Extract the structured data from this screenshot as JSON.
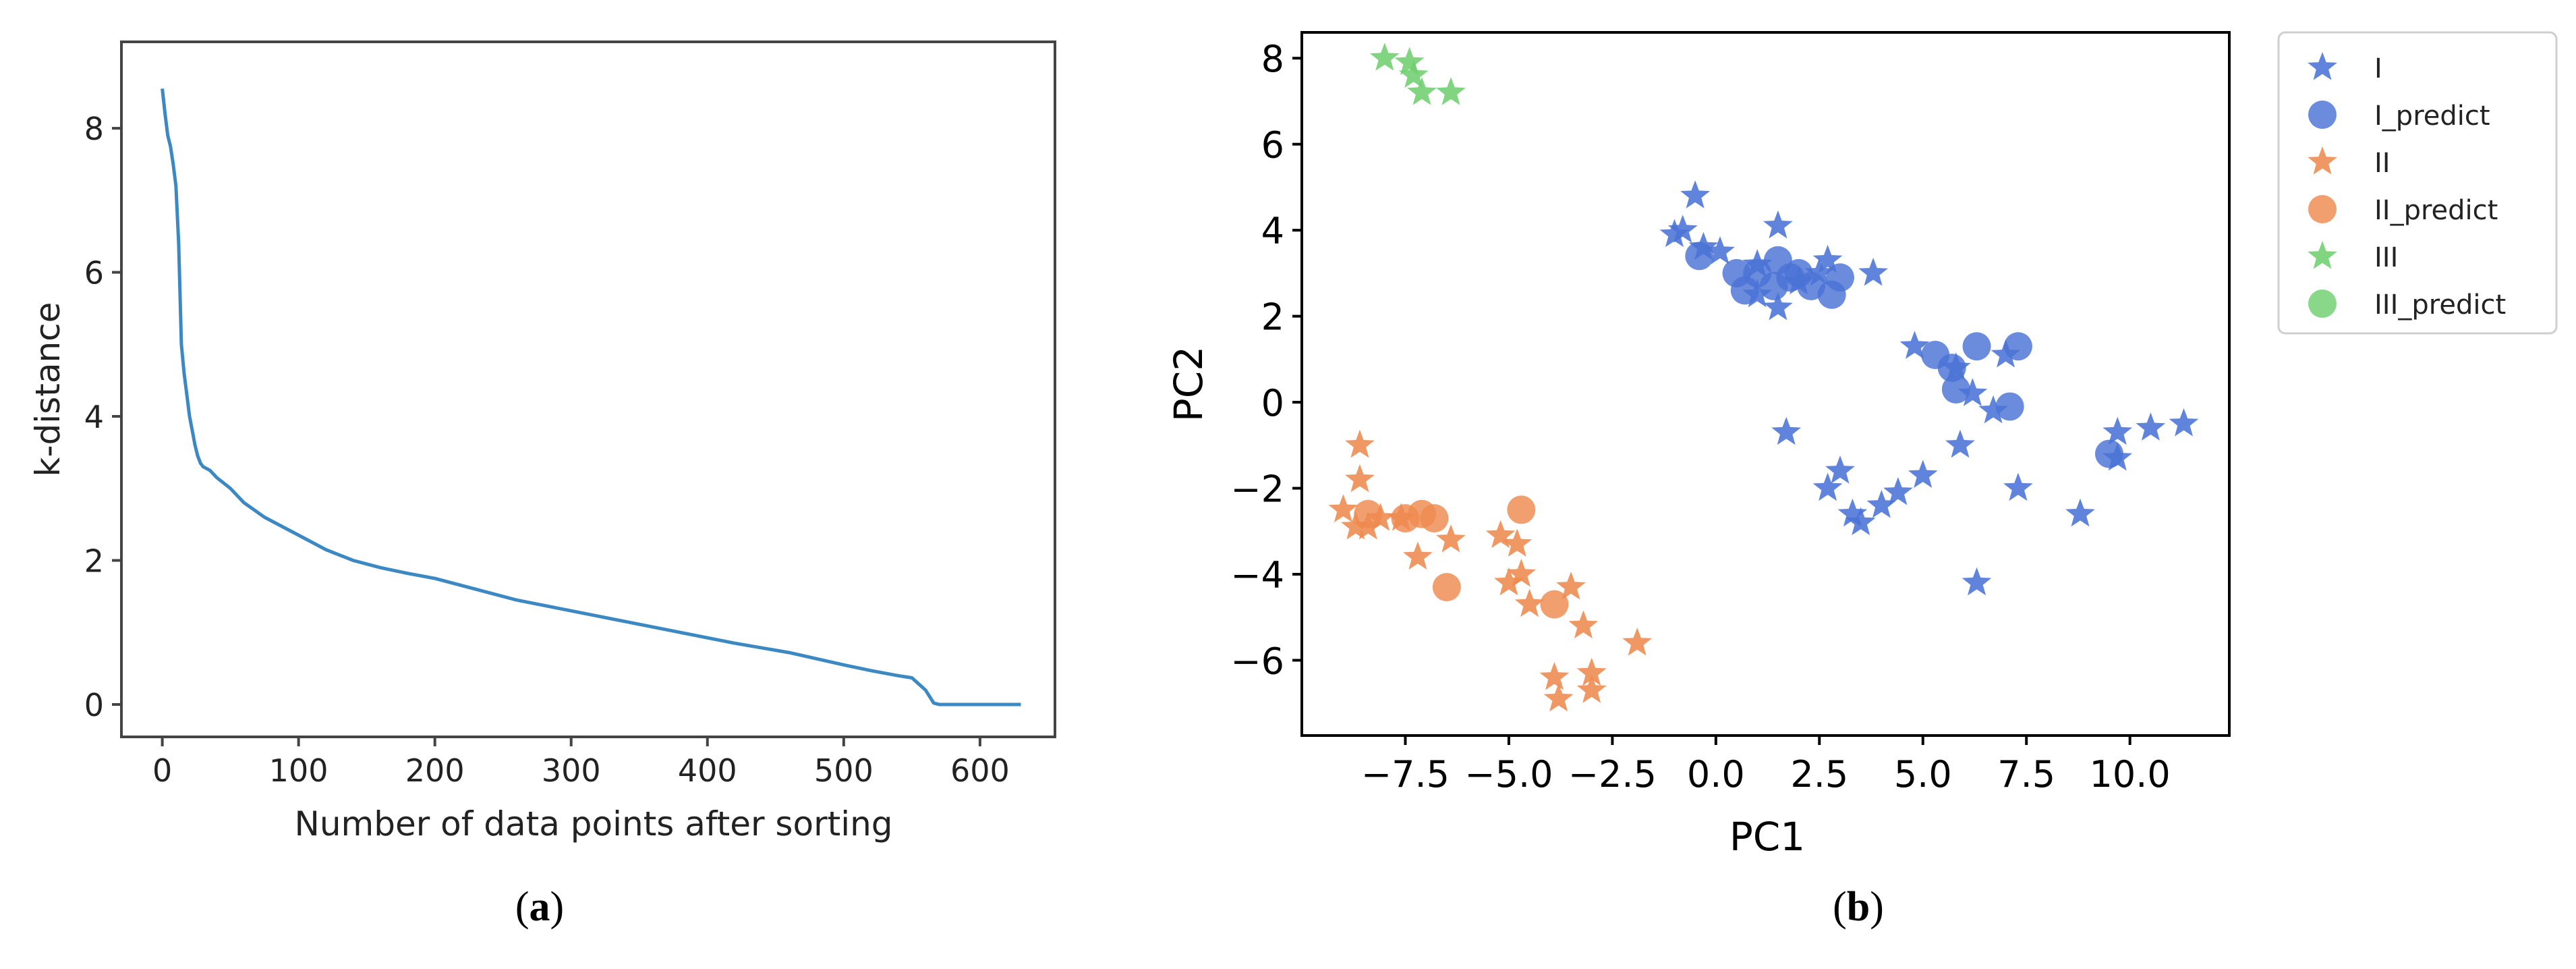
{
  "figure": {
    "captions": {
      "a_letter": "a",
      "b_letter": "b",
      "open": "(",
      "close": ")"
    },
    "colors": {
      "line": "#3b88c3",
      "I": "#4a73d6",
      "II": "#ee8a4f",
      "III": "#6fcf6f"
    }
  },
  "chart_data": [
    {
      "id": "a",
      "type": "line",
      "title": "",
      "xlabel": "Number of data points after sorting",
      "ylabel": "k-distance",
      "xlim": [
        -30,
        655
      ],
      "ylim": [
        -0.45,
        9.2
      ],
      "xticks": [
        0,
        100,
        200,
        300,
        400,
        500,
        600
      ],
      "xtick_labels": [
        "0",
        "100",
        "200",
        "300",
        "400",
        "500",
        "600"
      ],
      "yticks": [
        0,
        2,
        4,
        6,
        8
      ],
      "ytick_labels": [
        "0",
        "2",
        "4",
        "6",
        "8"
      ],
      "grid": false,
      "series": [
        {
          "name": "k-distance",
          "x": [
            0,
            2,
            4,
            6,
            8,
            10,
            12,
            14,
            16,
            18,
            20,
            22,
            24,
            26,
            28,
            30,
            35,
            40,
            50,
            60,
            75,
            90,
            100,
            120,
            140,
            160,
            180,
            200,
            230,
            260,
            300,
            340,
            380,
            420,
            460,
            500,
            520,
            540,
            550,
            560,
            566,
            570,
            600,
            630
          ],
          "y": [
            8.55,
            8.2,
            7.9,
            7.75,
            7.5,
            7.2,
            6.4,
            5.0,
            4.6,
            4.3,
            4.0,
            3.8,
            3.6,
            3.45,
            3.35,
            3.3,
            3.25,
            3.15,
            3.0,
            2.8,
            2.6,
            2.45,
            2.35,
            2.15,
            2.0,
            1.9,
            1.82,
            1.75,
            1.6,
            1.45,
            1.3,
            1.15,
            1.0,
            0.85,
            0.72,
            0.55,
            0.47,
            0.4,
            0.37,
            0.2,
            0.02,
            0.0,
            0.0,
            0.0
          ]
        }
      ]
    },
    {
      "id": "b",
      "type": "scatter",
      "title": "",
      "xlabel": "PC1",
      "ylabel": "PC2",
      "xlim": [
        -10.0,
        12.4
      ],
      "ylim": [
        -7.75,
        8.6
      ],
      "xticks": [
        -7.5,
        -5.0,
        -2.5,
        0.0,
        2.5,
        5.0,
        7.5,
        10.0
      ],
      "xtick_labels": [
        "−7.5",
        "−5.0",
        "−2.5",
        "0.0",
        "2.5",
        "5.0",
        "7.5",
        "10.0"
      ],
      "yticks": [
        -6,
        -4,
        -2,
        0,
        2,
        4,
        6,
        8
      ],
      "ytick_labels": [
        "−6",
        "−4",
        "−2",
        "0",
        "2",
        "4",
        "6",
        "8"
      ],
      "grid": false,
      "legend": "outside-right",
      "series": [
        {
          "name": "I",
          "marker": "star",
          "color": "#4a73d6",
          "points": [
            [
              -0.5,
              4.8
            ],
            [
              -1.0,
              3.9
            ],
            [
              -0.8,
              4.0
            ],
            [
              -0.3,
              3.6
            ],
            [
              0.1,
              3.5
            ],
            [
              1.5,
              4.1
            ],
            [
              1.0,
              3.2
            ],
            [
              2.7,
              3.3
            ],
            [
              2.5,
              3.0
            ],
            [
              3.8,
              3.0
            ],
            [
              1.0,
              2.5
            ],
            [
              1.5,
              2.2
            ],
            [
              2.0,
              2.8
            ],
            [
              4.8,
              1.3
            ],
            [
              5.8,
              0.8
            ],
            [
              6.2,
              0.2
            ],
            [
              6.7,
              -0.2
            ],
            [
              7.0,
              1.1
            ],
            [
              9.7,
              -0.7
            ],
            [
              10.5,
              -0.6
            ],
            [
              11.3,
              -0.5
            ],
            [
              9.7,
              -1.3
            ],
            [
              1.7,
              -0.7
            ],
            [
              5.9,
              -1.0
            ],
            [
              2.7,
              -2.0
            ],
            [
              3.0,
              -1.6
            ],
            [
              3.3,
              -2.6
            ],
            [
              3.5,
              -2.8
            ],
            [
              4.0,
              -2.4
            ],
            [
              4.4,
              -2.1
            ],
            [
              5.0,
              -1.7
            ],
            [
              7.3,
              -2.0
            ],
            [
              8.8,
              -2.6
            ],
            [
              6.3,
              -4.2
            ]
          ]
        },
        {
          "name": "I_predict",
          "marker": "circle",
          "color": "#4a73d6",
          "points": [
            [
              -0.4,
              3.4
            ],
            [
              0.5,
              3.0
            ],
            [
              1.0,
              3.0
            ],
            [
              1.5,
              3.3
            ],
            [
              2.0,
              3.0
            ],
            [
              2.3,
              2.7
            ],
            [
              3.0,
              2.9
            ],
            [
              0.7,
              2.6
            ],
            [
              1.4,
              2.7
            ],
            [
              2.8,
              2.5
            ],
            [
              1.8,
              2.9
            ],
            [
              5.3,
              1.1
            ],
            [
              5.7,
              0.8
            ],
            [
              6.3,
              1.3
            ],
            [
              7.3,
              1.3
            ],
            [
              5.8,
              0.3
            ],
            [
              7.1,
              -0.1
            ],
            [
              9.5,
              -1.2
            ]
          ]
        },
        {
          "name": "II",
          "marker": "star",
          "color": "#ee8a4f",
          "points": [
            [
              -8.6,
              -1.0
            ],
            [
              -8.6,
              -1.8
            ],
            [
              -9.0,
              -2.5
            ],
            [
              -8.7,
              -2.9
            ],
            [
              -8.4,
              -2.9
            ],
            [
              -8.1,
              -2.7
            ],
            [
              -7.6,
              -2.7
            ],
            [
              -7.2,
              -3.6
            ],
            [
              -6.4,
              -3.2
            ],
            [
              -5.2,
              -3.1
            ],
            [
              -4.8,
              -3.3
            ],
            [
              -5.0,
              -4.2
            ],
            [
              -4.7,
              -4.0
            ],
            [
              -4.5,
              -4.7
            ],
            [
              -3.5,
              -4.3
            ],
            [
              -3.2,
              -5.2
            ],
            [
              -3.9,
              -6.4
            ],
            [
              -3.8,
              -6.9
            ],
            [
              -3.0,
              -6.3
            ],
            [
              -3.0,
              -6.7
            ],
            [
              -1.9,
              -5.6
            ]
          ]
        },
        {
          "name": "II_predict",
          "marker": "circle",
          "color": "#ee8a4f",
          "points": [
            [
              -8.4,
              -2.6
            ],
            [
              -7.5,
              -2.7
            ],
            [
              -7.1,
              -2.6
            ],
            [
              -6.8,
              -2.7
            ],
            [
              -4.7,
              -2.5
            ],
            [
              -6.5,
              -4.3
            ],
            [
              -3.9,
              -4.7
            ]
          ]
        },
        {
          "name": "III",
          "marker": "star",
          "color": "#6fcf6f",
          "points": [
            [
              -8.0,
              8.0
            ],
            [
              -7.4,
              7.9
            ],
            [
              -7.3,
              7.6
            ],
            [
              -7.1,
              7.2
            ],
            [
              -6.4,
              7.2
            ]
          ]
        },
        {
          "name": "III_predict",
          "marker": "circle",
          "color": "#6fcf6f",
          "points": []
        }
      ]
    }
  ]
}
